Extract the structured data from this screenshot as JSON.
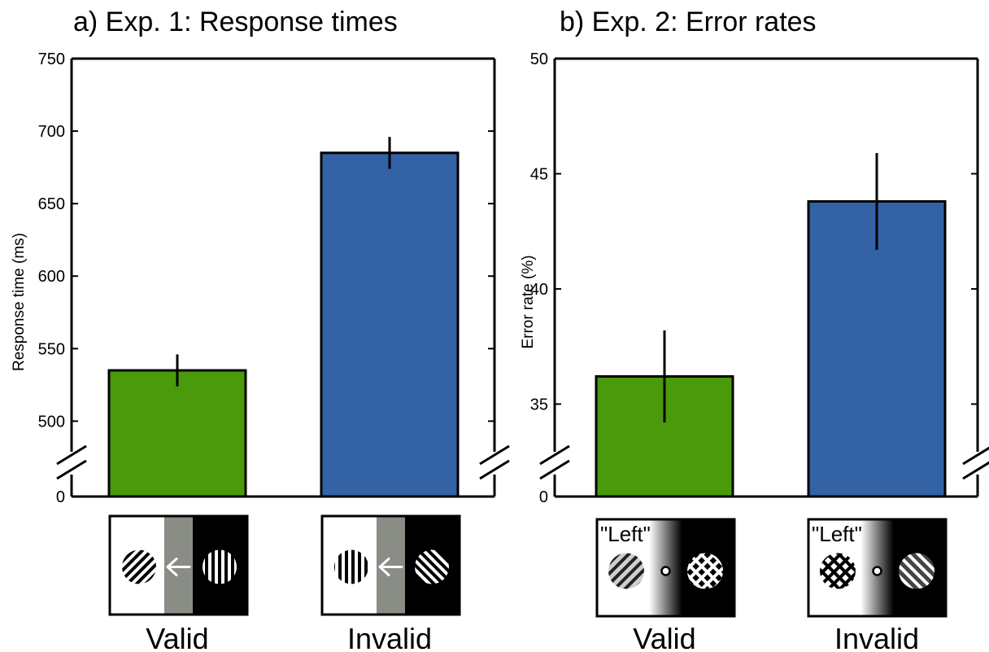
{
  "chart_data": [
    {
      "type": "bar",
      "title": "a) Exp. 1: Response times",
      "ylabel": "Response time (ms)",
      "categories": [
        "Valid",
        "Invalid"
      ],
      "values": [
        535,
        685
      ],
      "errors": [
        11,
        11
      ],
      "colors": [
        "#4a9a0b",
        "#3362a5"
      ],
      "ylim": [
        480,
        750
      ],
      "yticks": [
        500,
        550,
        600,
        650,
        700,
        750
      ],
      "axis_break": true,
      "break_label": "0"
    },
    {
      "type": "bar",
      "title": "b) Exp. 2: Error rates",
      "ylabel": "Error rate (%)",
      "categories": [
        "Valid",
        "Invalid"
      ],
      "values": [
        36.2,
        43.8
      ],
      "errors": [
        2.0,
        2.1
      ],
      "colors": [
        "#4a9a0b",
        "#3362a5"
      ],
      "ylim": [
        33,
        50
      ],
      "yticks": [
        35,
        40,
        45,
        50
      ],
      "axis_break": true,
      "break_label": "0"
    }
  ],
  "stimuli": [
    {
      "panel": 0,
      "category": "Valid",
      "kind": "arrow",
      "left_grating": "diagonal",
      "right_grating": "vertical"
    },
    {
      "panel": 0,
      "category": "Invalid",
      "kind": "arrow",
      "left_grating": "vertical",
      "right_grating": "diagonal"
    },
    {
      "panel": 1,
      "category": "Valid",
      "kind": "word",
      "cue_word": "\"Left\"",
      "left_grating": "diagonal",
      "right_grating": "plaid"
    },
    {
      "panel": 1,
      "category": "Invalid",
      "kind": "word",
      "cue_word": "\"Left\"",
      "left_grating": "plaid",
      "right_grating": "diagonal"
    }
  ]
}
